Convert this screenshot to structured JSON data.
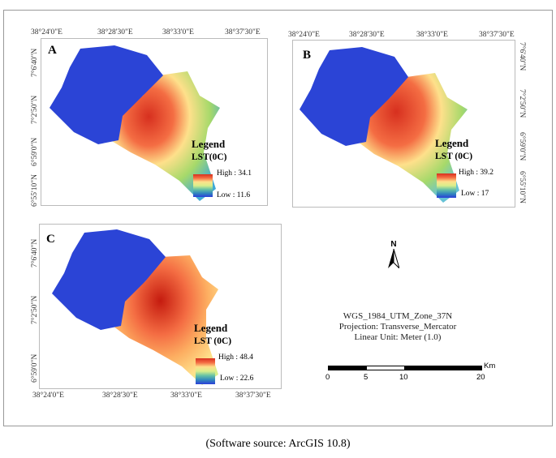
{
  "panels": [
    {
      "letter": "A",
      "legend_title": "Legend",
      "legend_subtitle": "LST(0C)",
      "high": "High : 34.1",
      "low": "Low : 11.6",
      "hot_color": "#e34a33"
    },
    {
      "letter": "B",
      "legend_title": "Legend",
      "legend_subtitle": "LST (0C)",
      "high": "High : 39.2",
      "low": "Low : 17",
      "hot_color": "#d7301f"
    },
    {
      "letter": "C",
      "legend_title": "Legend",
      "legend_subtitle": "LST (0C)",
      "high": "High : 48.4",
      "low": "Low : 22.6",
      "hot_color": "#c51b0f"
    }
  ],
  "longitudes": [
    "38°24'0\"E",
    "38°28'30\"E",
    "38°33'0\"E",
    "38°37'30\"E"
  ],
  "latitudes": [
    "7°6'40\"N",
    "7°2'50\"N",
    "6°59'0\"N",
    "6°55'10\"N"
  ],
  "north_arrow": "N",
  "projection": [
    "WGS_1984_UTM_Zone_37N",
    "Projection: Transverse_Mercator",
    "Linear Unit: Meter (1.0)"
  ],
  "scale_bar": {
    "unit": "Km",
    "ticks": [
      "0",
      "5",
      "10",
      "20"
    ]
  },
  "caption": "(Software source: ArcGIS 10.8)",
  "colors": {
    "lake": "#2b44d6",
    "high": "#d7301f",
    "mid": "#fee08b",
    "low": "#2b3ed8"
  }
}
